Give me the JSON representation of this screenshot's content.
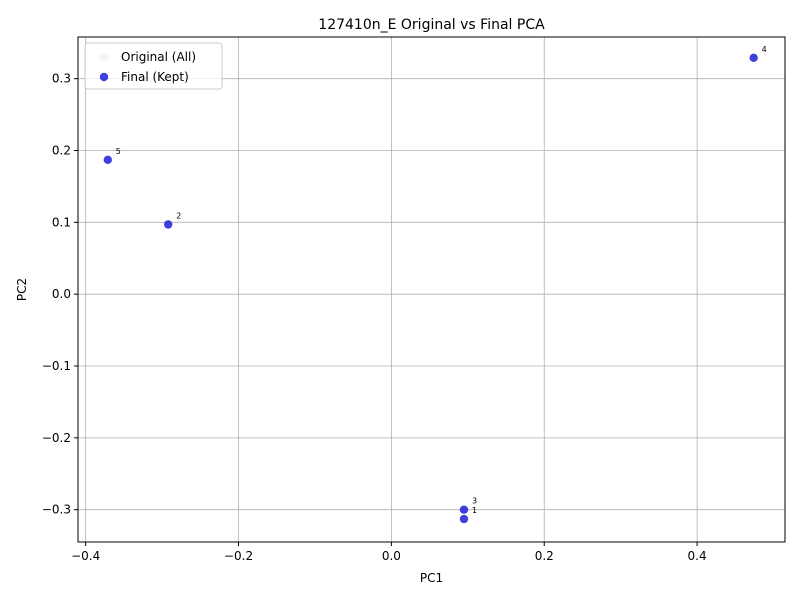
{
  "chart_data": {
    "type": "scatter",
    "title": "127410n_E Original vs Final PCA",
    "xlabel": "PC1",
    "ylabel": "PC2",
    "xlim": [
      -0.41,
      0.515
    ],
    "ylim": [
      -0.345,
      0.358
    ],
    "xticks": [
      -0.4,
      -0.2,
      0.0,
      0.2,
      0.4
    ],
    "xtick_labels": [
      "−0.4",
      "−0.2",
      "0.0",
      "0.2",
      "0.4"
    ],
    "yticks": [
      -0.3,
      -0.2,
      -0.1,
      0.0,
      0.1,
      0.2,
      0.3
    ],
    "ytick_labels": [
      "−0.3",
      "−0.2",
      "−0.1",
      "0.0",
      "0.1",
      "0.2",
      "0.3"
    ],
    "grid": true,
    "legend_position": "top-left",
    "series": [
      {
        "name": "Original (All)",
        "color": "#e8e8e8",
        "alpha": 0.5,
        "points": []
      },
      {
        "name": "Final (Kept)",
        "color": "#1f1fd8",
        "alpha": 0.85,
        "points": [
          {
            "label": "1",
            "x": 0.095,
            "y": -0.313
          },
          {
            "label": "2",
            "x": -0.292,
            "y": 0.097
          },
          {
            "label": "3",
            "x": 0.095,
            "y": -0.3
          },
          {
            "label": "4",
            "x": 0.474,
            "y": 0.329
          },
          {
            "label": "5",
            "x": -0.371,
            "y": 0.187
          }
        ]
      }
    ]
  }
}
